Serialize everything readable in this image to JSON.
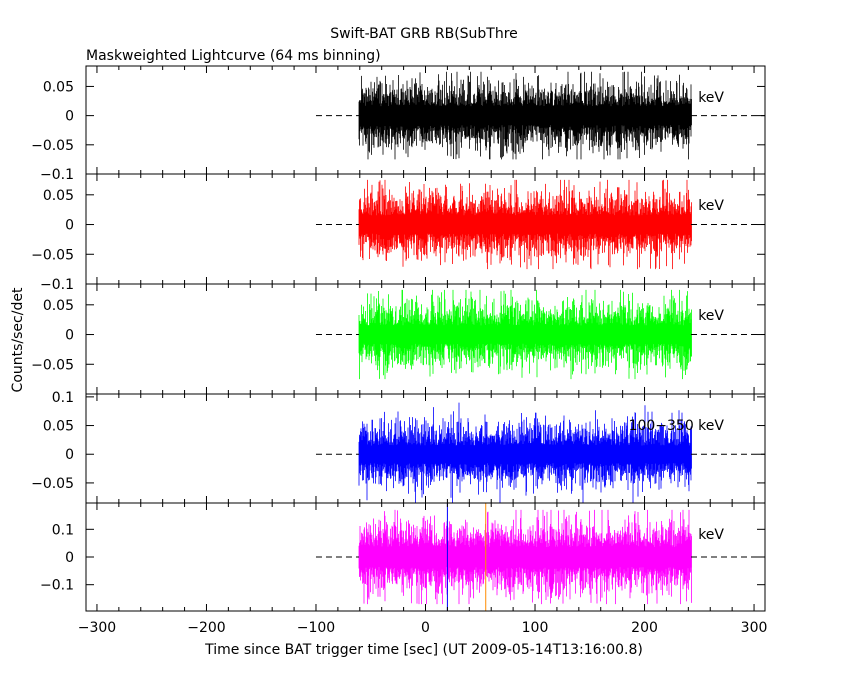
{
  "title": "Swift-BAT GRB RB(SubThre",
  "subtitle": "Maskweighted Lightcurve (64 ms binning)",
  "xlabel": "Time since BAT trigger time [sec] (UT 2009-05-14T13:16:00.8)",
  "ylabel": "Counts/sec/det",
  "chart_data": {
    "type": "line",
    "title": "Swift-BAT GRB RB(SubThre",
    "subtitle": "Maskweighted Lightcurve (64 ms binning)",
    "xlabel": "Time since BAT trigger time [sec] (UT 2009-05-14T13:16:00.8)",
    "ylabel": "Counts/sec/det",
    "xlim": [
      -310,
      310
    ],
    "x_ticks": [
      -300,
      -200,
      -100,
      0,
      100,
      200,
      300
    ],
    "x_tick_labels": [
      "−300",
      "−200",
      "−100",
      "0",
      "100",
      "200",
      "300"
    ],
    "data_range": [
      -61,
      242
    ],
    "baseline_start": -100,
    "bin_seconds": 0.064,
    "grid": false,
    "panels": [
      {
        "name": "panel-1",
        "band_label": "keV",
        "color": "#000000",
        "ylim": [
          -0.1,
          0.085
        ],
        "y_ticks": [
          0.05,
          0,
          -0.05,
          -0.1
        ],
        "y_tick_labels": [
          "0.05",
          "0",
          "−0.05",
          "−0.1"
        ],
        "noise_sigma": 0.018,
        "noise_max": 0.075
      },
      {
        "name": "panel-2",
        "band_label": "keV",
        "color": "#ff0000",
        "ylim": [
          -0.1,
          0.085
        ],
        "y_ticks": [
          0.05,
          0,
          -0.05,
          -0.1
        ],
        "y_tick_labels": [
          "0.05",
          "0",
          "−0.05",
          "−0.1"
        ],
        "noise_sigma": 0.017,
        "noise_max": 0.075
      },
      {
        "name": "panel-3",
        "band_label": "keV",
        "color": "#00ff00",
        "ylim": [
          -0.1,
          0.085
        ],
        "y_ticks": [
          0.05,
          0,
          -0.05
        ],
        "y_tick_labels": [
          "0.05",
          "0",
          "−0.05"
        ],
        "noise_sigma": 0.017,
        "noise_max": 0.075
      },
      {
        "name": "panel-4",
        "band_label": "100−350 keV",
        "color": "#0000ff",
        "ylim": [
          -0.085,
          0.105
        ],
        "y_ticks": [
          0.1,
          0.05,
          0,
          -0.05
        ],
        "y_tick_labels": [
          "0.1",
          "0.05",
          "0",
          "−0.05"
        ],
        "noise_sigma": 0.017,
        "noise_max": 0.09
      },
      {
        "name": "panel-5",
        "band_label": "keV",
        "color": "#ff00ff",
        "ylim": [
          -0.195,
          0.195
        ],
        "y_ticks": [
          0.1,
          0,
          -0.1
        ],
        "y_tick_labels": [
          "0.1",
          "0",
          "−0.1"
        ],
        "noise_sigma": 0.04,
        "noise_max": 0.17
      }
    ],
    "markers": [
      {
        "x": 20,
        "color": "#0000ff"
      },
      {
        "x": 55,
        "color": "#ff8c00"
      }
    ]
  }
}
